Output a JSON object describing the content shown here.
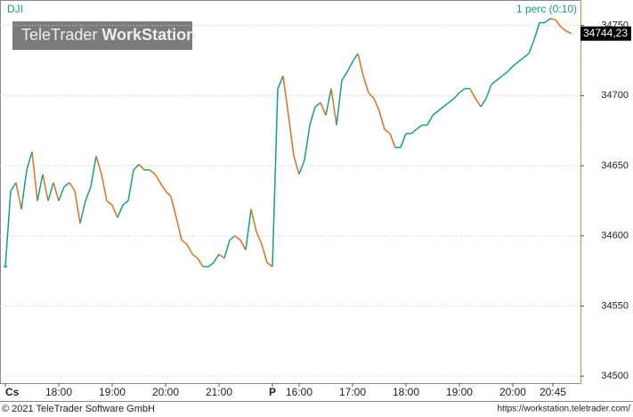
{
  "chart_data": {
    "type": "line",
    "symbol": "DJI",
    "interval": "1 perc (0:10)",
    "watermark_brand": "TeleTrader",
    "watermark_product": "WorkStation",
    "copyright": "© 2021 TeleTrader Software GmbH",
    "url": "https://workstation.teletrader.com/",
    "up_color": "#13a08a",
    "down_color": "#e0701a",
    "grid": true,
    "values": [
      34578,
      34632,
      34638,
      34619,
      34647,
      34660,
      34625,
      34644,
      34625,
      34638,
      34625,
      34635,
      34638,
      34632,
      34609,
      34625,
      34635,
      34657,
      34644,
      34625,
      34622,
      34613,
      34622,
      34625,
      34647,
      34651,
      34647,
      34647,
      34644,
      34638,
      34632,
      34628,
      34613,
      34597,
      34594,
      34587,
      34584,
      34578,
      34578,
      34581,
      34587,
      34584,
      34597,
      34600,
      34597,
      34590,
      34619,
      34603,
      34594,
      34581,
      34578,
      34705,
      34714,
      34686,
      34657,
      34644,
      34654,
      34679,
      34692,
      34695,
      34686,
      34705,
      34679,
      34711,
      34717,
      34724,
      34730,
      34714,
      34702,
      34698,
      34689,
      34676,
      34673,
      34663,
      34663,
      34673,
      34673,
      34676,
      34679,
      34679,
      34686,
      34689,
      34692,
      34695,
      34698,
      34702,
      34705,
      34705,
      34698,
      34692,
      34698,
      34708,
      34711,
      34714,
      34717,
      34721,
      34724,
      34727,
      34730,
      34740,
      34752,
      34752,
      34755,
      34754,
      34749,
      34746,
      34744.23
    ],
    "last_price": {
      "value": 34744.23,
      "label": "34744,23"
    },
    "xlim": [
      -1,
      107.67
    ],
    "xticks": [
      {
        "value": 0,
        "label": "Cs"
      },
      {
        "value": 10,
        "label": "18:00"
      },
      {
        "value": 20,
        "label": "19:00"
      },
      {
        "value": 30,
        "label": "20:00"
      },
      {
        "value": 40,
        "label": "21:00"
      },
      {
        "value": 50,
        "label": "P"
      },
      {
        "value": 55,
        "label": "16:00"
      },
      {
        "value": 65,
        "label": "17:00"
      },
      {
        "value": 75,
        "label": "18:00"
      },
      {
        "value": 85,
        "label": "19:00"
      },
      {
        "value": 95,
        "label": "20:00"
      },
      {
        "value": 102.5,
        "label": "20:45"
      }
    ],
    "ylim": [
      34495,
      34765
    ],
    "yticks": [
      34500,
      34550,
      34600,
      34650,
      34700,
      34750
    ]
  }
}
